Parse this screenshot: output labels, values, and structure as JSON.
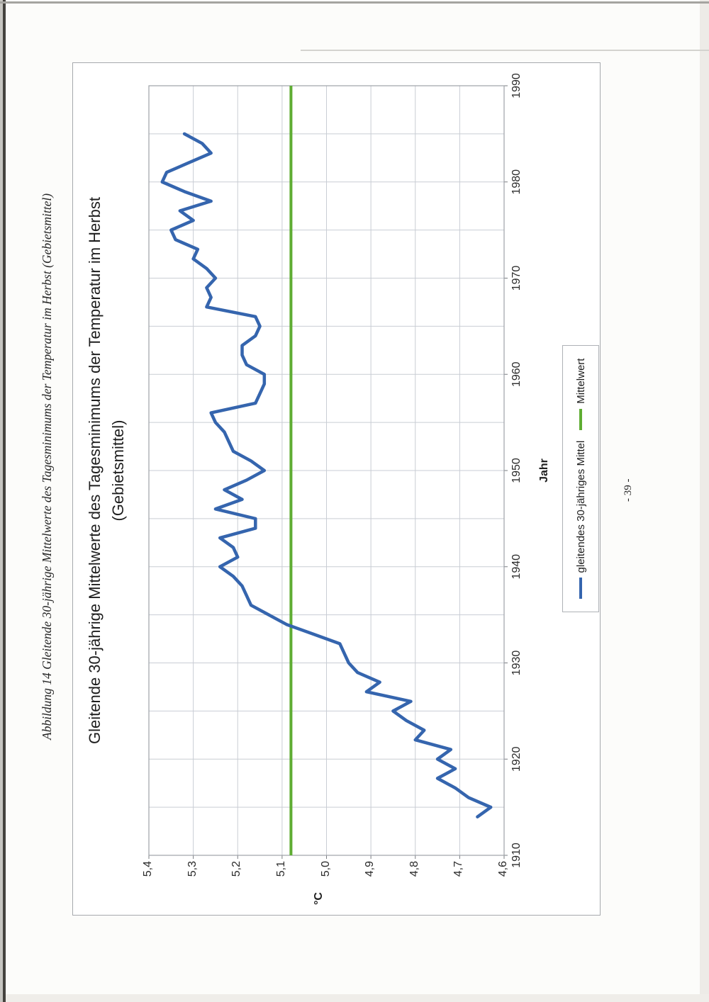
{
  "page": {
    "caption": "Abbildung 14 Gleitende 30-jährige Mittelwerte des Tagesminimums der Temperatur im Herbst (Gebietsmittel)",
    "page_number": "- 39 -"
  },
  "chart": {
    "title_line1": "Gleitende 30-jährige Mittelwerte des Tagesminimums der Temperatur im Herbst",
    "title_line2": "(Gebietsmittel)",
    "x_axis_title": "Jahr",
    "y_axis_title": "°C"
  },
  "chart_data": {
    "type": "line",
    "title": "Gleitende 30-jährige Mittelwerte des Tagesminimums der Temperatur im Herbst (Gebietsmittel)",
    "xlabel": "Jahr",
    "ylabel": "°C",
    "xlim": [
      1910,
      1990
    ],
    "ylim": [
      4.6,
      5.4
    ],
    "x_major_ticks": [
      1910,
      1920,
      1930,
      1940,
      1950,
      1960,
      1970,
      1980,
      1990
    ],
    "x_grid_step_years": 5,
    "y_ticks": [
      5.4,
      5.3,
      5.2,
      5.1,
      5.0,
      4.9,
      4.8,
      4.7,
      4.6
    ],
    "y_tick_labels": [
      "5,4",
      "5,3",
      "5,2",
      "5,1",
      "5,0",
      "4,9",
      "4,8",
      "4,7",
      "4,6"
    ],
    "grid": "on",
    "legend_position": "bottom",
    "orientation": "chart rotated 90deg counter-clockwise on portrait page",
    "colors": {
      "series_blue": "#3565ae",
      "mean_green": "#5fad33",
      "gridline": "#c9cdd4",
      "plot_border": "#9ea2a8"
    },
    "series": [
      {
        "name": "gleitendes 30-jähriges Mittel",
        "type": "line",
        "color": "#3565ae",
        "x": [
          1914,
          1915,
          1916,
          1917,
          1918,
          1919,
          1920,
          1921,
          1922,
          1923,
          1924,
          1925,
          1926,
          1927,
          1928,
          1929,
          1930,
          1931,
          1932,
          1933,
          1934,
          1935,
          1936,
          1937,
          1938,
          1939,
          1940,
          1941,
          1942,
          1943,
          1944,
          1945,
          1946,
          1947,
          1948,
          1949,
          1950,
          1951,
          1952,
          1953,
          1954,
          1955,
          1956,
          1957,
          1958,
          1959,
          1960,
          1961,
          1962,
          1963,
          1964,
          1965,
          1966,
          1967,
          1968,
          1969,
          1970,
          1971,
          1972,
          1973,
          1974,
          1975,
          1976,
          1977,
          1978,
          1979,
          1980,
          1981,
          1982,
          1983,
          1984,
          1985
        ],
        "y": [
          4.66,
          4.63,
          4.68,
          4.71,
          4.75,
          4.71,
          4.75,
          4.72,
          4.8,
          4.78,
          4.82,
          4.85,
          4.81,
          4.91,
          4.88,
          4.93,
          4.95,
          4.96,
          4.97,
          5.03,
          5.09,
          5.13,
          5.17,
          5.18,
          5.19,
          5.21,
          5.24,
          5.2,
          5.21,
          5.24,
          5.16,
          5.16,
          5.25,
          5.19,
          5.23,
          5.18,
          5.14,
          5.17,
          5.21,
          5.22,
          5.23,
          5.25,
          5.26,
          5.16,
          5.15,
          5.14,
          5.14,
          5.18,
          5.19,
          5.19,
          5.16,
          5.15,
          5.16,
          5.27,
          5.26,
          5.27,
          5.25,
          5.27,
          5.3,
          5.29,
          5.34,
          5.35,
          5.3,
          5.33,
          5.26,
          5.32,
          5.37,
          5.36,
          5.31,
          5.26,
          5.28,
          5.32
        ]
      },
      {
        "name": "Mittelwert",
        "type": "hline",
        "color": "#5fad33",
        "value": 5.08
      }
    ]
  }
}
